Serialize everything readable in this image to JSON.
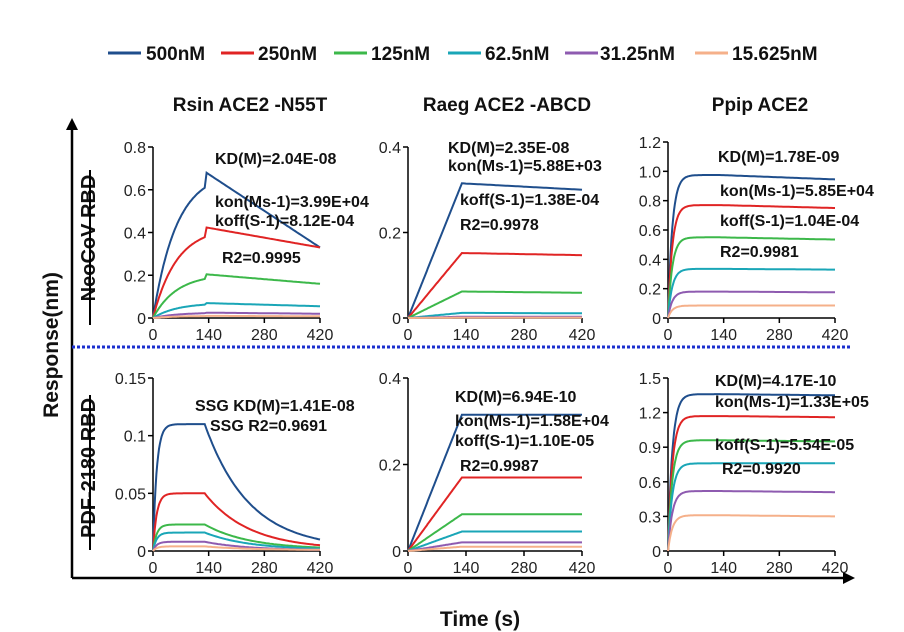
{
  "figure": {
    "y_label": "Response(nm)",
    "x_label": "Time (s)",
    "row_labels": [
      "NeoCoV RBD",
      "PDF-2180 RBD"
    ],
    "column_titles": [
      "Rsin ACE2 -N55T",
      "Raeg ACE2 -ABCD",
      "Ppip ACE2"
    ]
  },
  "legend": [
    {
      "label": "500nM",
      "color": "#1f4e8c"
    },
    {
      "label": "250nM",
      "color": "#e02424"
    },
    {
      "label": "125nM",
      "color": "#3cb84a"
    },
    {
      "label": "62.5nM",
      "color": "#1aa6b7"
    },
    {
      "label": "31.25nM",
      "color": "#8e5bb0"
    },
    {
      "label": "15.625nM",
      "color": "#f5b08a"
    }
  ],
  "chart_data": [
    {
      "type": "line",
      "row": 0,
      "col": 0,
      "ylim": [
        0,
        0.8
      ],
      "yticks": [
        "0",
        "0.2",
        "0.4",
        "0.6",
        "0.8"
      ],
      "xlim": [
        0,
        420
      ],
      "xticks": [
        "0",
        "140",
        "280",
        "420"
      ],
      "association_end": 130,
      "model": "slow",
      "series": [
        {
          "name": "500nM",
          "peak": 0.685,
          "end": 0.33
        },
        {
          "name": "250nM",
          "peak": 0.425,
          "end": 0.33
        },
        {
          "name": "125nM",
          "peak": 0.205,
          "end": 0.16
        },
        {
          "name": "62.5nM",
          "peak": 0.07,
          "end": 0.055
        },
        {
          "name": "31.25nM",
          "peak": 0.025,
          "end": 0.02
        },
        {
          "name": "15.625nM",
          "peak": 0.01,
          "end": 0.008
        }
      ],
      "annotations": [
        {
          "text": "KD(M)=2.04E-08"
        },
        {
          "text": "kon(Ms-1)=3.99E+04"
        },
        {
          "text": "koff(S-1)=8.12E-04"
        },
        {
          "text": "R2=0.9995"
        }
      ]
    },
    {
      "type": "line",
      "row": 0,
      "col": 1,
      "ylim": [
        0,
        0.4
      ],
      "yticks": [
        "0",
        "0.2",
        "0.4"
      ],
      "xlim": [
        0,
        420
      ],
      "xticks": [
        "0",
        "140",
        "280",
        "420"
      ],
      "association_end": 130,
      "model": "linear",
      "series": [
        {
          "name": "500nM",
          "peak": 0.315,
          "end": 0.3
        },
        {
          "name": "250nM",
          "peak": 0.152,
          "end": 0.147
        },
        {
          "name": "125nM",
          "peak": 0.062,
          "end": 0.059
        },
        {
          "name": "62.5nM",
          "peak": 0.012,
          "end": 0.011
        },
        {
          "name": "31.25nM",
          "peak": 0.003,
          "end": 0.003
        },
        {
          "name": "15.625nM",
          "peak": 0.001,
          "end": 0.001
        }
      ],
      "annotations": [
        {
          "text": "KD(M)=2.35E-08"
        },
        {
          "text": "kon(Ms-1)=5.88E+03"
        },
        {
          "text": "koff(S-1)=1.38E-04"
        },
        {
          "text": "R2=0.9978"
        }
      ]
    },
    {
      "type": "line",
      "row": 0,
      "col": 2,
      "ylim": [
        0,
        1.2
      ],
      "yticks": [
        "0",
        "0.2",
        "0.4",
        "0.6",
        "0.8",
        "1.0",
        "1.2"
      ],
      "xlim": [
        0,
        420
      ],
      "xticks": [
        "0",
        "140",
        "280",
        "420"
      ],
      "association_end": 130,
      "model": "fast",
      "series": [
        {
          "name": "500nM",
          "peak": 0.975,
          "end": 0.945
        },
        {
          "name": "250nM",
          "peak": 0.77,
          "end": 0.75
        },
        {
          "name": "125nM",
          "peak": 0.55,
          "end": 0.535
        },
        {
          "name": "62.5nM",
          "peak": 0.335,
          "end": 0.33
        },
        {
          "name": "31.25nM",
          "peak": 0.18,
          "end": 0.175
        },
        {
          "name": "15.625nM",
          "peak": 0.085,
          "end": 0.085
        }
      ],
      "annotations": [
        {
          "text": "KD(M)=1.78E-09"
        },
        {
          "text": "kon(Ms-1)=5.85E+04"
        },
        {
          "text": "koff(S-1)=1.04E-04"
        },
        {
          "text": "R2=0.9981"
        }
      ]
    },
    {
      "type": "line",
      "row": 1,
      "col": 0,
      "ylim": [
        0,
        0.15
      ],
      "yticks": [
        "0",
        "0.05",
        "0.1",
        "0.15"
      ],
      "xlim": [
        0,
        420
      ],
      "xticks": [
        "0",
        "140",
        "280",
        "420"
      ],
      "association_end": 130,
      "model": "steady",
      "series": [
        {
          "name": "500nM",
          "peak": 0.11,
          "end": 0.01
        },
        {
          "name": "250nM",
          "peak": 0.05,
          "end": 0.005
        },
        {
          "name": "125nM",
          "peak": 0.023,
          "end": 0.003
        },
        {
          "name": "62.5nM",
          "peak": 0.016,
          "end": 0.002
        },
        {
          "name": "31.25nM",
          "peak": 0.008,
          "end": 0.001
        },
        {
          "name": "15.625nM",
          "peak": 0.004,
          "end": 0.001
        }
      ],
      "annotations": [
        {
          "text": "SSG KD(M)=1.41E-08"
        },
        {
          "text": "SSG R2=0.9691"
        }
      ]
    },
    {
      "type": "line",
      "row": 1,
      "col": 1,
      "ylim": [
        0,
        0.4
      ],
      "yticks": [
        "0",
        "0.2",
        "0.4"
      ],
      "xlim": [
        0,
        420
      ],
      "xticks": [
        "0",
        "140",
        "280",
        "420"
      ],
      "association_end": 130,
      "model": "linear",
      "series": [
        {
          "name": "500nM",
          "peak": 0.315,
          "end": 0.315
        },
        {
          "name": "250nM",
          "peak": 0.17,
          "end": 0.17
        },
        {
          "name": "125nM",
          "peak": 0.085,
          "end": 0.085
        },
        {
          "name": "62.5nM",
          "peak": 0.045,
          "end": 0.045
        },
        {
          "name": "31.25nM",
          "peak": 0.02,
          "end": 0.02
        },
        {
          "name": "15.625nM",
          "peak": 0.01,
          "end": 0.01
        }
      ],
      "annotations": [
        {
          "text": "KD(M)=6.94E-10"
        },
        {
          "text": "kon(Ms-1)=1.58E+04"
        },
        {
          "text": "koff(S-1)=1.10E-05"
        },
        {
          "text": "R2=0.9987"
        }
      ]
    },
    {
      "type": "line",
      "row": 1,
      "col": 2,
      "ylim": [
        0,
        1.5
      ],
      "yticks": [
        "0",
        "0.3",
        "0.6",
        "0.9",
        "1.2",
        "1.5"
      ],
      "xlim": [
        0,
        420
      ],
      "xticks": [
        "0",
        "140",
        "280",
        "420"
      ],
      "association_end": 130,
      "model": "fast",
      "series": [
        {
          "name": "500nM",
          "peak": 1.36,
          "end": 1.35
        },
        {
          "name": "250nM",
          "peak": 1.17,
          "end": 1.16
        },
        {
          "name": "125nM",
          "peak": 0.96,
          "end": 0.95
        },
        {
          "name": "62.5nM",
          "peak": 0.76,
          "end": 0.76
        },
        {
          "name": "31.25nM",
          "peak": 0.52,
          "end": 0.51
        },
        {
          "name": "15.625nM",
          "peak": 0.31,
          "end": 0.3
        }
      ],
      "annotations": [
        {
          "text": "KD(M)=4.17E-10"
        },
        {
          "text": "kon(Ms-1)=1.33E+05"
        },
        {
          "text": "koff(S-1)=5.54E-05"
        },
        {
          "text": "R2=0.9920"
        }
      ]
    }
  ]
}
